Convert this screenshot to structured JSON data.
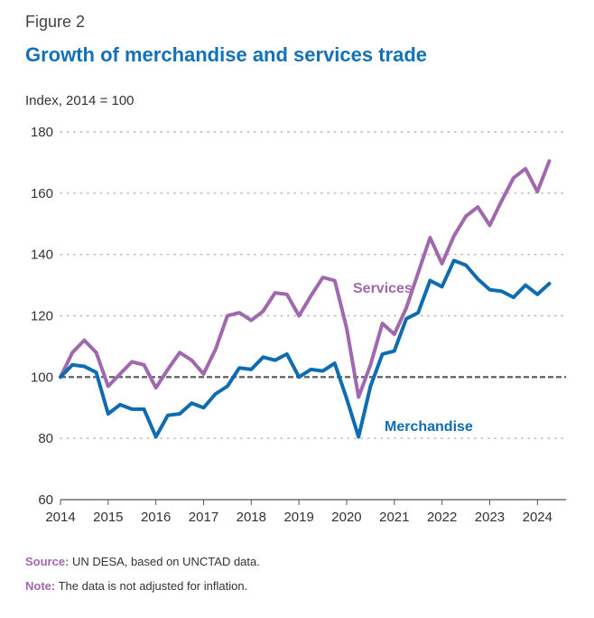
{
  "figure_label": "Figure 2",
  "colors": {
    "title": "#1371b7",
    "merchandise": "#0f6cb1",
    "services": "#a068ad",
    "baseline": "#555555",
    "note_label": "#a068ad"
  },
  "footer": {
    "source_label": "Source:",
    "source_text": " UN DESA, based on UNCTAD data.",
    "note_label": "Note:",
    "note_text": " The data is not adjusted for inflation."
  },
  "chart_data": {
    "type": "line",
    "title": "Growth of merchandise and services trade",
    "ylabel": "Index, 2014 = 100",
    "xlabel": "",
    "ylim": [
      60,
      180
    ],
    "xlim": [
      2014,
      2024.6
    ],
    "yticks": [
      "60",
      "80",
      "100",
      "120",
      "140",
      "160",
      "180"
    ],
    "xticks": [
      "2014",
      "2015",
      "2016",
      "2017",
      "2018",
      "2019",
      "2020",
      "2021",
      "2022",
      "2023",
      "2024"
    ],
    "grid": "horizontal dotted",
    "baseline": 100,
    "x": [
      2014,
      2014.25,
      2014.5,
      2014.75,
      2015,
      2015.25,
      2015.5,
      2015.75,
      2016,
      2016.25,
      2016.5,
      2016.75,
      2017,
      2017.25,
      2017.5,
      2017.75,
      2018,
      2018.25,
      2018.5,
      2018.75,
      2019,
      2019.25,
      2019.5,
      2019.75,
      2020,
      2020.25,
      2020.5,
      2020.75,
      2021,
      2021.25,
      2021.5,
      2021.75,
      2022,
      2022.25,
      2022.5,
      2022.75,
      2023,
      2023.25,
      2023.5,
      2023.75,
      2024,
      2024.25,
      2024.5
    ],
    "series": [
      {
        "name": "Services",
        "values": [
          100,
          108,
          112,
          108,
          97,
          101,
          105,
          104,
          96.5,
          102.5,
          108,
          105.5,
          101,
          109,
          120,
          121,
          118.5,
          121.5,
          127.5,
          127,
          120,
          126.5,
          132.5,
          131.5,
          116,
          93.5,
          104,
          117.5,
          114,
          122.5,
          134,
          145.5,
          137,
          146,
          152.5,
          155.5,
          149.5,
          157.5,
          165,
          168,
          160.5,
          170.5,
          null
        ]
      },
      {
        "name": "Merchandise",
        "values": [
          100,
          104,
          103.5,
          101.5,
          88,
          91,
          89.5,
          89.5,
          80.5,
          87.5,
          88,
          91.5,
          90,
          94.5,
          97,
          103,
          102.5,
          106.5,
          105.5,
          107.5,
          100,
          102.5,
          102,
          104.5,
          93,
          80.5,
          97,
          107.5,
          108.5,
          119,
          121,
          131.5,
          129.5,
          138,
          136.5,
          132,
          128.5,
          128,
          126,
          130,
          127,
          130.5,
          null
        ]
      }
    ]
  }
}
